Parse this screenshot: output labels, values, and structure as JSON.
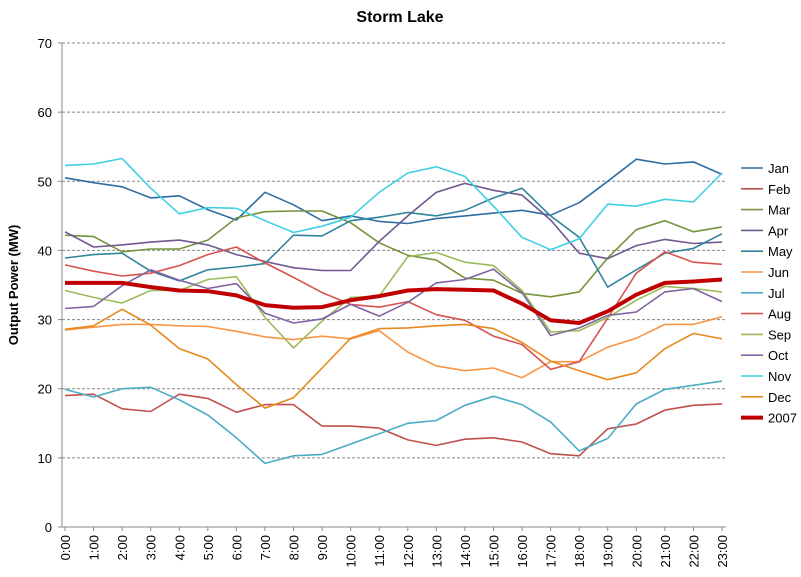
{
  "chart_data": {
    "type": "line",
    "title": "Storm Lake",
    "y_label": "Output Power (MW)",
    "categories": [
      "0:00",
      "1:00",
      "2:00",
      "3:00",
      "4:00",
      "5:00",
      "6:00",
      "7:00",
      "8:00",
      "9:00",
      "10:00",
      "11:00",
      "12:00",
      "13:00",
      "14:00",
      "15:00",
      "16:00",
      "17:00",
      "18:00",
      "19:00",
      "20:00",
      "21:00",
      "22:00",
      "23:00"
    ],
    "ylim": [
      0,
      70
    ],
    "yticks": [
      0,
      10,
      20,
      30,
      40,
      50,
      60,
      70
    ],
    "grid": true,
    "legend": "right",
    "series": [
      {
        "name": "Jan",
        "color": "#2e6da4",
        "width": 1.6,
        "values": [
          50.5,
          49.8,
          49.2,
          47.6,
          47.9,
          45.9,
          44.4,
          48.4,
          46.6,
          44.3,
          45.0,
          44.2,
          43.9,
          44.6,
          45.0,
          45.4,
          45.8,
          45.1,
          46.9,
          50.0,
          53.2,
          52.5,
          52.8,
          51.0
        ]
      },
      {
        "name": "Feb",
        "color": "#c0504d",
        "width": 1.6,
        "values": [
          19.0,
          19.2,
          17.1,
          16.7,
          19.2,
          18.6,
          16.6,
          17.7,
          17.7,
          14.6,
          14.6,
          14.3,
          12.6,
          11.8,
          12.7,
          12.9,
          12.3,
          10.6,
          10.3,
          14.2,
          14.9,
          16.9,
          17.6,
          17.8
        ]
      },
      {
        "name": "Mar",
        "color": "#77933c",
        "width": 1.6,
        "values": [
          42.2,
          42.0,
          39.8,
          40.2,
          40.2,
          41.5,
          44.7,
          45.6,
          45.7,
          45.7,
          44.0,
          41.1,
          39.3,
          38.6,
          36.0,
          35.7,
          33.8,
          33.3,
          34.0,
          38.9,
          43.0,
          44.3,
          42.7,
          43.4
        ]
      },
      {
        "name": "Apr",
        "color": "#71588f",
        "width": 1.6,
        "values": [
          42.7,
          40.5,
          40.8,
          41.2,
          41.5,
          40.8,
          39.4,
          38.4,
          37.5,
          37.1,
          37.1,
          41.3,
          45.0,
          48.4,
          49.7,
          48.7,
          48.0,
          44.4,
          39.6,
          38.8,
          40.7,
          41.6,
          41.0,
          41.2
        ]
      },
      {
        "name": "May",
        "color": "#31859c",
        "width": 1.6,
        "values": [
          38.9,
          39.4,
          39.6,
          37.0,
          35.6,
          37.2,
          37.6,
          38.1,
          42.2,
          42.1,
          44.3,
          44.8,
          45.5,
          45.0,
          45.8,
          47.6,
          49.0,
          45.0,
          41.9,
          34.7,
          37.2,
          39.6,
          40.3,
          42.4
        ]
      },
      {
        "name": "Jun",
        "color": "#f79646",
        "width": 1.6,
        "values": [
          28.5,
          28.9,
          29.3,
          29.3,
          29.1,
          29.0,
          28.3,
          27.5,
          27.1,
          27.6,
          27.2,
          28.4,
          25.3,
          23.3,
          22.6,
          23.0,
          21.6,
          23.9,
          23.9,
          26.0,
          27.3,
          29.3,
          29.3,
          30.4
        ]
      },
      {
        "name": "Jul",
        "color": "#4bacc6",
        "width": 1.6,
        "values": [
          19.9,
          18.8,
          20.0,
          20.2,
          18.4,
          16.2,
          12.9,
          9.2,
          10.3,
          10.5,
          12.0,
          13.5,
          15.0,
          15.4,
          17.6,
          18.9,
          17.7,
          15.2,
          11.0,
          12.8,
          17.8,
          19.9,
          20.5,
          21.1
        ]
      },
      {
        "name": "Aug",
        "color": "#d9534f",
        "width": 1.6,
        "values": [
          37.9,
          37.0,
          36.3,
          36.7,
          37.8,
          39.4,
          40.5,
          38.2,
          36.1,
          33.9,
          32.2,
          31.8,
          32.6,
          30.7,
          29.9,
          27.6,
          26.4,
          22.8,
          23.9,
          30.2,
          36.7,
          39.8,
          38.3,
          38.0
        ]
      },
      {
        "name": "Sep",
        "color": "#9bbb59",
        "width": 1.6,
        "values": [
          34.2,
          33.2,
          32.4,
          34.2,
          34.2,
          35.8,
          36.2,
          30.3,
          25.9,
          29.8,
          33.2,
          33.4,
          39.1,
          39.7,
          38.3,
          37.8,
          34.2,
          28.2,
          28.4,
          30.3,
          32.8,
          34.8,
          34.5,
          34.0
        ]
      },
      {
        "name": "Oct",
        "color": "#8064a2",
        "width": 1.6,
        "values": [
          31.6,
          31.9,
          34.9,
          37.2,
          35.7,
          34.5,
          35.2,
          30.9,
          29.5,
          30.1,
          32.2,
          30.5,
          32.5,
          35.3,
          35.8,
          37.3,
          33.9,
          27.7,
          28.8,
          30.6,
          31.1,
          34.0,
          34.5,
          32.6
        ]
      },
      {
        "name": "Nov",
        "color": "#3fd0e3",
        "width": 1.6,
        "values": [
          52.3,
          52.5,
          53.3,
          49.0,
          45.3,
          46.2,
          46.1,
          44.3,
          42.6,
          43.5,
          44.8,
          48.4,
          51.2,
          52.1,
          50.7,
          46.4,
          41.9,
          40.1,
          41.7,
          46.7,
          46.4,
          47.4,
          47.0,
          51.2
        ]
      },
      {
        "name": "Dec",
        "color": "#e8891e",
        "width": 1.6,
        "values": [
          28.6,
          29.1,
          31.5,
          29.2,
          25.8,
          24.3,
          20.6,
          17.2,
          18.7,
          23.0,
          27.3,
          28.7,
          28.8,
          29.1,
          29.3,
          28.7,
          26.7,
          24.0,
          22.6,
          21.3,
          22.3,
          25.8,
          28.0,
          27.2
        ]
      },
      {
        "name": "2007",
        "color": "#c00000",
        "width": 4,
        "values": [
          35.3,
          35.3,
          35.3,
          34.7,
          34.2,
          34.1,
          33.5,
          32.1,
          31.7,
          31.8,
          32.8,
          33.4,
          34.2,
          34.4,
          34.3,
          34.2,
          32.3,
          29.9,
          29.5,
          31.2,
          33.6,
          35.3,
          35.5,
          35.8
        ]
      }
    ]
  }
}
